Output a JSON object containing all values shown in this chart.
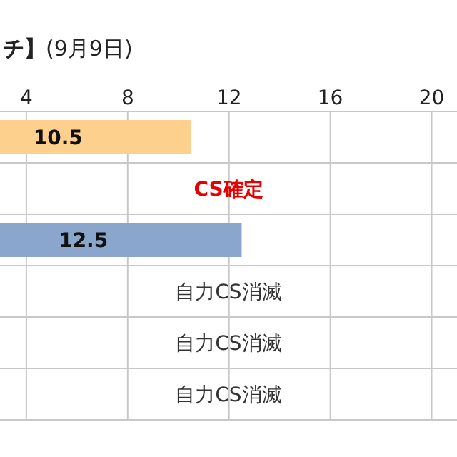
{
  "chart_data": {
    "type": "bar",
    "orientation": "horizontal",
    "title": "**チ】**(9月9日)",
    "categories": [
      null,
      null,
      null,
      null,
      null,
      null
    ],
    "values": [
      10.5,
      null,
      12.5,
      null,
      null,
      null
    ],
    "colors": [
      "#fdd08e",
      "#e60000",
      "#8aa6cc",
      "#333333",
      "#333333",
      "#333333"
    ],
    "value_labels": [
      "10.5",
      "CS確定",
      "12.5",
      "自力CS消滅",
      "自力CS消滅",
      "自力CS消滅"
    ],
    "xlim": [
      2.96,
      21
    ],
    "xticks": [
      4,
      8,
      12,
      16,
      20
    ],
    "grid": true
  }
}
